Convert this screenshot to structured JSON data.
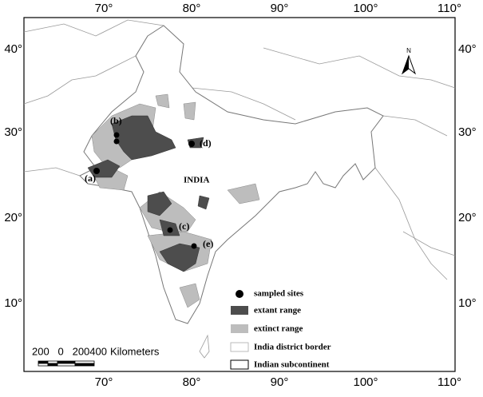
{
  "axes": {
    "top": [
      "70°",
      "80°",
      "90°",
      "100°",
      "110°"
    ],
    "bottom": [
      "70°",
      "80°",
      "90°",
      "100°",
      "110°"
    ],
    "left": [
      "40°",
      "30°",
      "20°",
      "10°"
    ],
    "right": [
      "40°",
      "30°",
      "20°",
      "10°"
    ]
  },
  "north": "N",
  "country_label": "INDIA",
  "site_labels": [
    "(a)",
    "(b)",
    "(c)",
    "(d)",
    "(e)"
  ],
  "legend": [
    "sampled sites",
    "extant range",
    "extinct range",
    "India district border",
    "Indian subcontinent"
  ],
  "scale_bar": {
    "ticks": "200   0   200400",
    "unit": "Kilometers"
  }
}
